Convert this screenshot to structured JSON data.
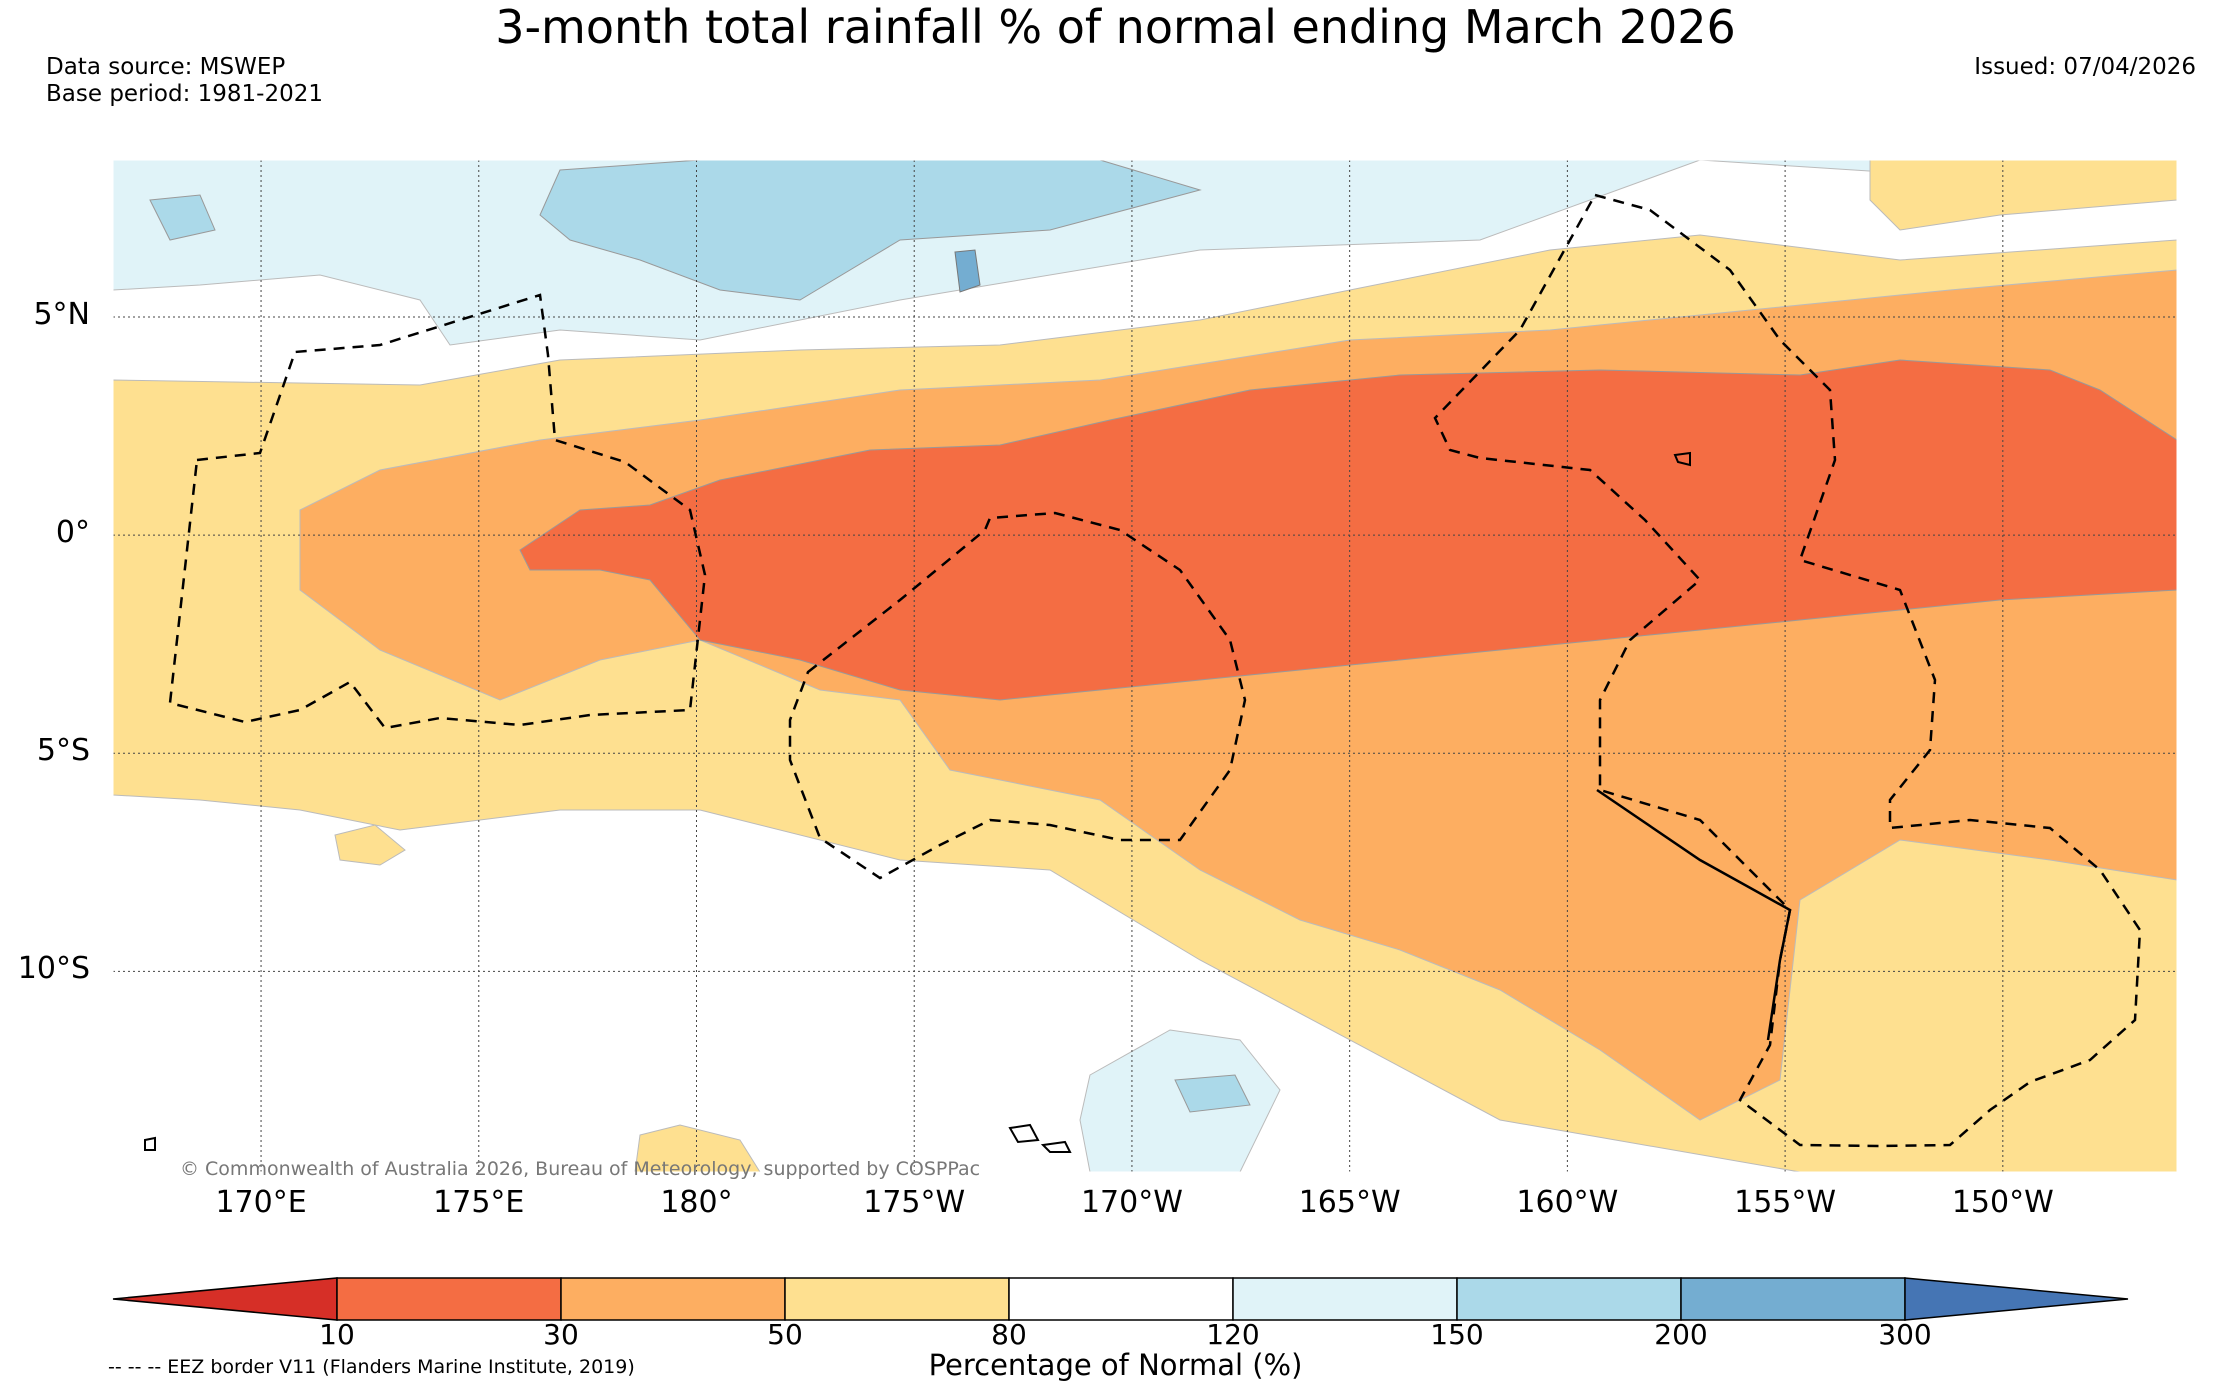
{
  "title": "3-month total rainfall % of normal ending March 2026",
  "source": "Data source: MSWEP",
  "base_period": "Base period: 1981-2021",
  "issued": "Issued: 07/04/2026",
  "copyright": "© Commonwealth of Australia 2026, Bureau of Meteorology, supported by COSPPac",
  "eez_note": "-- -- -- EEZ border V11 (Flanders Marine Institute, 2019)",
  "lat_ticks": [
    {
      "value": 5,
      "label": "5°N"
    },
    {
      "value": 0,
      "label": "0°"
    },
    {
      "value": -5,
      "label": "5°S"
    },
    {
      "value": -10,
      "label": "10°S"
    }
  ],
  "lon_ticks": [
    {
      "value": 170,
      "label": "170°E"
    },
    {
      "value": 175,
      "label": "175°E"
    },
    {
      "value": 180,
      "label": "180°"
    },
    {
      "value": 185,
      "label": "175°W"
    },
    {
      "value": 190,
      "label": "170°W"
    },
    {
      "value": 195,
      "label": "165°W"
    },
    {
      "value": 200,
      "label": "160°W"
    },
    {
      "value": 205,
      "label": "155°W"
    },
    {
      "value": 210,
      "label": "150°W"
    }
  ],
  "extent": {
    "lon_min": 166.6,
    "lon_max": 214.0,
    "lat_min": -14.6,
    "lat_max": 8.6
  },
  "colorbar": {
    "title": "Percentage of Normal (%)",
    "bounds": [
      "10",
      "30",
      "50",
      "80",
      "120",
      "150",
      "200",
      "300"
    ],
    "colors": [
      "#d62f27",
      "#f46d43",
      "#fdae61",
      "#fee090",
      "#ffffff",
      "#e0f3f8",
      "#abd9e9",
      "#74add1",
      "#4575b4"
    ]
  }
}
